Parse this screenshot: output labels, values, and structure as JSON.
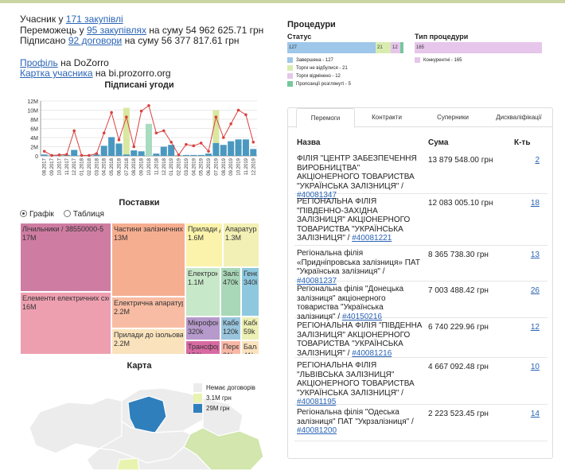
{
  "summary": {
    "line1_pre": "Учасник у ",
    "line1_link": "171 закупівлі",
    "line2_pre": "Переможець у ",
    "line2_link": "95 закупівлях",
    "line2_post": " на суму 54 962 625.71 грн",
    "line3_pre": "Підписано ",
    "line3_link": "92 договори",
    "line3_post": " на суму 56 377 817.61 грн",
    "profile_link": "Профіль",
    "profile_post": " на DoZorro",
    "card_link": "Картка учасника",
    "card_post": " на bi.prozorro.org"
  },
  "signed_chart": {
    "title": "Підписані угоди"
  },
  "chart_data": {
    "type": "bar",
    "ylim": [
      0,
      12
    ],
    "yticks": [
      "0",
      "2M",
      "4M",
      "6M",
      "8M",
      "10M",
      "12M"
    ],
    "categories": [
      "08.2017",
      "09.2017",
      "10.2017",
      "11.2017",
      "12.2017",
      "01.2018",
      "02.2018",
      "03.2018",
      "04.2018",
      "05.2018",
      "06.2018",
      "07.2018",
      "08.2018",
      "09.2018",
      "10.2018",
      "11.2018",
      "12.2018",
      "01.2019",
      "02.2019",
      "03.2019",
      "04.2019",
      "05.2019",
      "06.2019",
      "07.2019",
      "08.2019",
      "09.2019",
      "10.2019",
      "11.2019",
      "12.2019"
    ],
    "series": [
      {
        "values": [
          0.3,
          0.1,
          0.1,
          0.2,
          1.3,
          0.1,
          0.1,
          0.3,
          2.2,
          4.1,
          2.7,
          0.3,
          1.2,
          1.0,
          7.0,
          0.5,
          2.0,
          2.4,
          0.1,
          0.2,
          0.2,
          0.2,
          0.5,
          2.8,
          2.4,
          3.2,
          3.6,
          3.6,
          1.5
        ]
      },
      {
        "values": [
          0,
          0,
          0,
          0,
          0,
          0,
          0,
          0,
          0,
          0,
          0,
          10.5,
          0,
          0,
          0,
          0,
          0,
          0,
          0,
          0,
          0,
          0,
          0,
          10.0,
          0,
          0,
          0,
          0,
          0
        ]
      },
      {
        "values": [
          1.0,
          0.1,
          0.2,
          0.3,
          5.5,
          0.1,
          0.1,
          0.5,
          5.0,
          9.5,
          3.5,
          8.5,
          2.0,
          9.8,
          11.0,
          5.0,
          5.5,
          3.0,
          0.2,
          2.5,
          2.2,
          2.8,
          1.0,
          8.5,
          4.0,
          7.0,
          10.0,
          9.0,
          3.0
        ]
      }
    ],
    "colors": {
      "main": "#4a98c0",
      "accent": "#d8e8a0",
      "alt": "#a8dcc0",
      "line": "#d9413e"
    }
  },
  "supply": {
    "title": "Поставки",
    "view_chart": "Графік",
    "view_table": "Таблиця",
    "tiles": [
      {
        "label": "Лічильники / 38550000-5",
        "value": "17M",
        "color": "#cf7ca2"
      },
      {
        "label": "Елементи електричних схем /",
        "value": "16M",
        "color": "#ed9fb0"
      },
      {
        "label": "Частини залізничних або",
        "value": "13M",
        "color": "#f6ae90"
      },
      {
        "label": "Електрична апаратура д",
        "value": "2.2M",
        "color": "#f7bca3"
      },
      {
        "label": "Прилади до ізольовани",
        "value": "2.2M",
        "color": "#f9e2bc"
      },
      {
        "label": "Прилади дл",
        "value": "1.6M",
        "color": "#fbf3ab"
      },
      {
        "label": "Апаратура",
        "value": "1.3M",
        "color": "#f3f0b5"
      },
      {
        "label": "Електронн",
        "value": "1.1M",
        "color": "#c7e8c9"
      },
      {
        "label": "Залізн",
        "value": "470k",
        "color": "#a9d8b8"
      },
      {
        "label": "Генер",
        "value": "340k",
        "color": "#8ec8de"
      },
      {
        "label": "Мікрофони",
        "value": "320k",
        "color": "#b69acb"
      },
      {
        "label": "Кабе",
        "value": "120k",
        "color": "#99c5dd"
      },
      {
        "label": "Трансфор",
        "value": "150k",
        "color": "#d86aa3"
      },
      {
        "label": "Перего",
        "value": "81k",
        "color": "#f9b8a7"
      },
      {
        "label": "Бала",
        "value": "41k",
        "color": "#fae3bd"
      },
      {
        "label": "Кабе",
        "value": "59k",
        "color": "#ecf0b4"
      }
    ]
  },
  "map": {
    "title": "Карта",
    "legend": [
      {
        "label": "Немає договорів",
        "color": "#ececec"
      },
      {
        "label": "3.1M грн",
        "color": "#e9f3b0"
      },
      {
        "label": "29M грн",
        "color": "#2f7fbd"
      }
    ]
  },
  "procedures": {
    "title": "Процедури",
    "status_label": "Статус",
    "type_label": "Тип процедури",
    "status_segments": [
      {
        "value": "127",
        "color": "#9ec7ea"
      },
      {
        "value": "21",
        "color": "#d9ecb0"
      },
      {
        "value": "12",
        "color": "#e6c6ea"
      },
      {
        "value": "",
        "color": "#77c79b"
      }
    ],
    "status_legend": [
      {
        "label": "Завершена - 127",
        "color": "#9ec7ea"
      },
      {
        "label": "Торги не відбулися - 21",
        "color": "#d9ecb0"
      },
      {
        "label": "Торги відмінено - 12",
        "color": "#e6c6ea"
      },
      {
        "label": "Пропозиції розглянуті - 5",
        "color": "#77c79b"
      }
    ],
    "type_segments": [
      {
        "value": "165",
        "color": "#e6c6ea"
      }
    ],
    "type_legend": [
      {
        "label": "Конкурентні - 165",
        "color": "#e6c6ea"
      }
    ]
  },
  "tabs": [
    "Перемоги",
    "Контракти",
    "Суперники",
    "Дискваліфікації"
  ],
  "winners": {
    "col_name": "Назва",
    "col_sum": "Сума",
    "col_count": "К-ть",
    "rows": [
      {
        "name": "ФІЛІЯ \"ЦЕНТР ЗАБЕЗПЕЧЕННЯ ВИРОБНИЦТВА\" АКЦІОНЕРНОГО ТОВАРИСТВА \"УКРАЇНСЬКА ЗАЛІЗНИЦЯ\" / ",
        "code": "#40081347",
        "sum": "13 879 548.00 грн",
        "count": "2"
      },
      {
        "name": "РЕГІОНАЛЬНА ФІЛІЯ \"ПІВДЕННО-ЗАХІДНА ЗАЛІЗНИЦЯ\" АКЦІОНЕРНОГО ТОВАРИСТВА \"УКРАЇНСЬКА ЗАЛІЗНИЦЯ\" / ",
        "code": "#40081221",
        "sum": "12 083 005.10 грн",
        "count": "18"
      },
      {
        "name": "Регіональна філія «Придніпровська залізниця» ПАТ \"Українська залізниця\" / ",
        "code": "#40081237",
        "sum": "8 365 738.30 грн",
        "count": "13"
      },
      {
        "name": "Регіональна філія \"Донецька залізниця\" акціонерного товариства \"Українська залізниця\" / ",
        "code": "#40150216",
        "sum": "7 003 488.42 грн",
        "count": "26"
      },
      {
        "name": "РЕГІОНАЛЬНА ФІЛІЯ \"ПІВДЕННА ЗАЛІЗНИЦЯ\" АКЦІОНЕРНОГО ТОВАРИСТВА \"УКРАЇНСЬКА ЗАЛІЗНИЦЯ\" / ",
        "code": "#40081216",
        "sum": "6 740 229.96 грн",
        "count": "12"
      },
      {
        "name": "РЕГІОНАЛЬНА ФІЛІЯ \"ЛЬВІВСЬКА ЗАЛІЗНИЦЯ\" АКЦІОНЕРНОГО ТОВАРИСТВА \"УКРАЇНСЬКА ЗАЛІЗНИЦЯ\" / ",
        "code": "#40081195",
        "sum": "4 667 092.48 грн",
        "count": "10"
      },
      {
        "name": "Регіональна філія \"Одеська залізниця\" ПАТ \"Укрзалізниця\" / ",
        "code": "#40081200",
        "sum": "2 223 523.45 грн",
        "count": "14"
      }
    ]
  }
}
